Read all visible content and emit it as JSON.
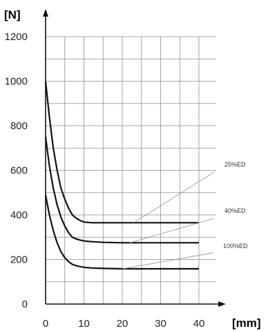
{
  "chart_data": {
    "type": "line",
    "ylabel": "[N]",
    "xlabel": "[mm]",
    "xlim": [
      0,
      40
    ],
    "ylim": [
      0,
      1200
    ],
    "x_ticks": [
      "0",
      "10",
      "20",
      "30",
      "40"
    ],
    "y_ticks": [
      "0",
      "200",
      "400",
      "600",
      "800",
      "1000",
      "1200"
    ],
    "grid": true,
    "series": [
      {
        "name": "25%ED",
        "x": [
          0,
          1,
          2,
          3,
          4,
          5,
          6,
          7,
          8,
          9,
          10,
          12,
          15,
          20,
          25,
          30,
          35,
          40
        ],
        "values": [
          1000,
          840,
          700,
          600,
          520,
          470,
          430,
          400,
          385,
          375,
          368,
          365,
          365,
          365,
          365,
          365,
          365,
          365
        ]
      },
      {
        "name": "40%ED",
        "x": [
          0,
          1,
          2,
          3,
          4,
          5,
          6,
          7,
          8,
          9,
          10,
          12,
          15,
          20,
          25,
          30,
          35,
          40
        ],
        "values": [
          750,
          620,
          520,
          445,
          390,
          350,
          320,
          300,
          292,
          287,
          283,
          280,
          277,
          275,
          275,
          275,
          275,
          275
        ]
      },
      {
        "name": "100%ED",
        "x": [
          0,
          1,
          2,
          3,
          4,
          5,
          6,
          7,
          8,
          9,
          10,
          12,
          15,
          20,
          25,
          30,
          35,
          40
        ],
        "values": [
          490,
          400,
          330,
          275,
          235,
          208,
          190,
          178,
          172,
          168,
          165,
          162,
          160,
          158,
          158,
          158,
          158,
          158
        ]
      }
    ]
  }
}
